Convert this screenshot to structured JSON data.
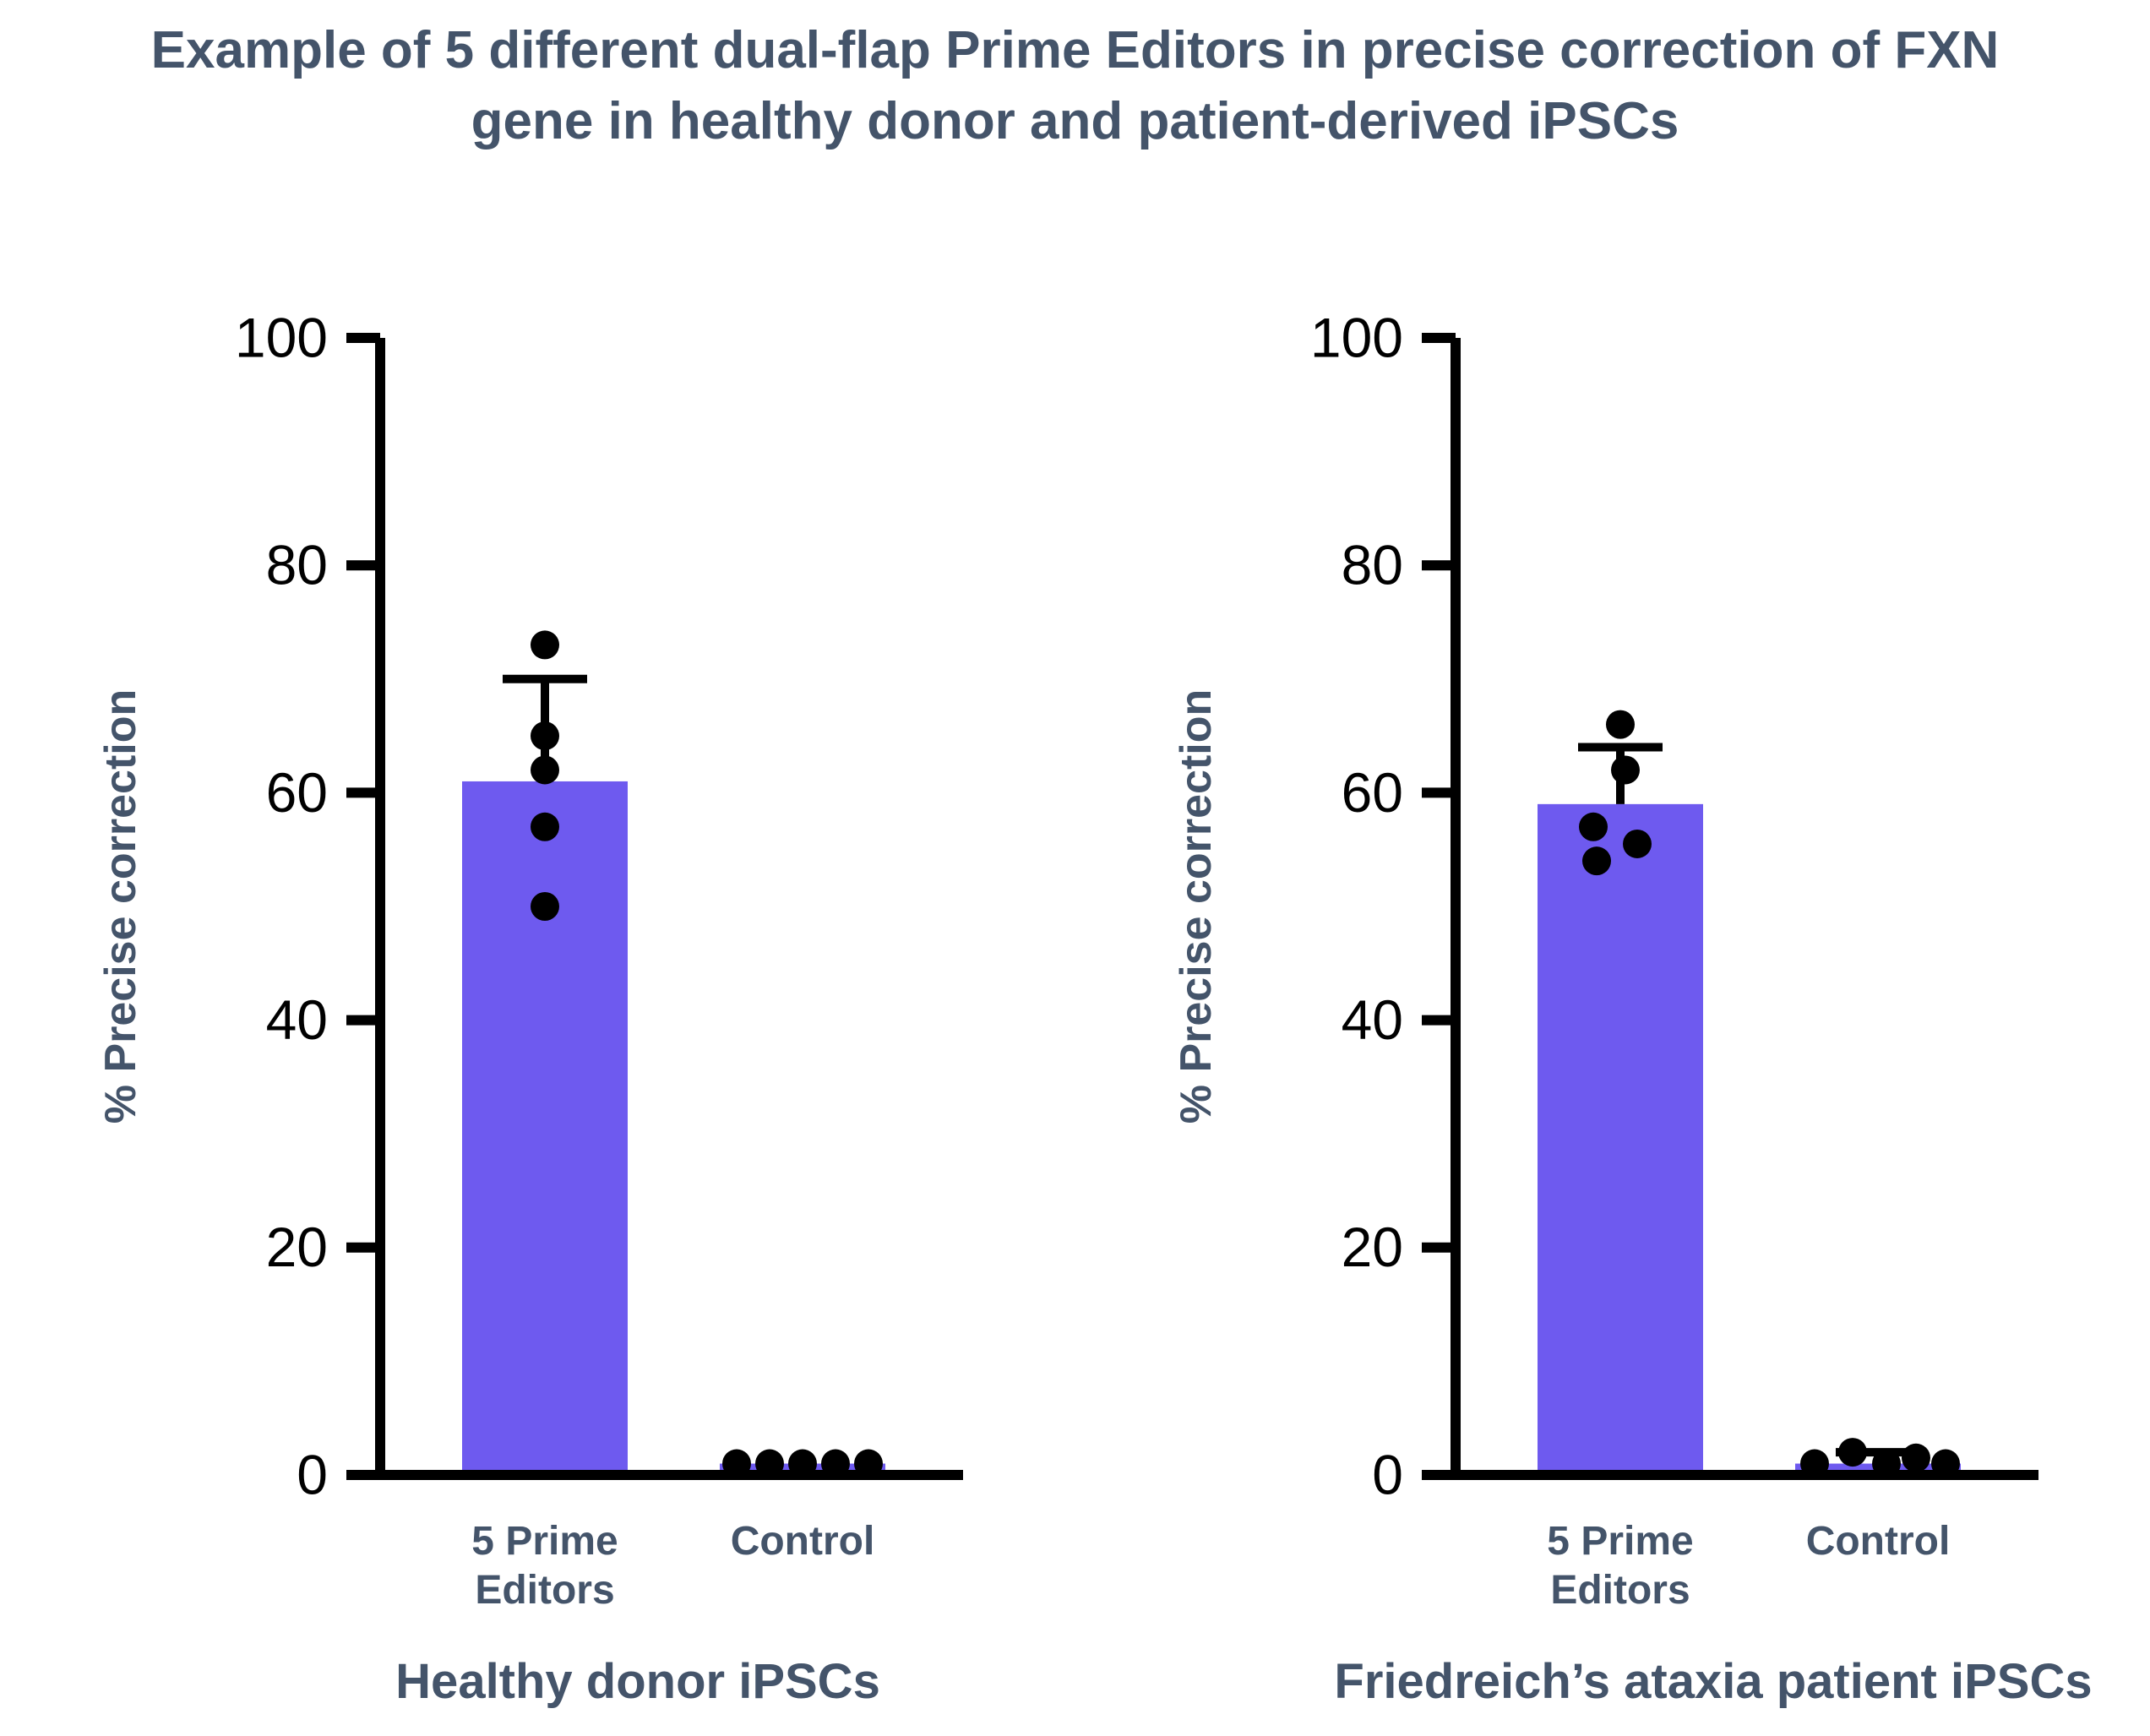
{
  "page": {
    "title_lines": [
      "Example of 5 different dual-flap Prime Editors in precise correction of FXN",
      "gene in healthy donor and patient-derived iPSCs"
    ],
    "title_color": "#44546A",
    "background": "#ffffff"
  },
  "chart_data": [
    {
      "type": "bar",
      "title": "Healthy donor iPSCs",
      "ylabel": "% Precise correction",
      "ylim": [
        0,
        100
      ],
      "yticks": [
        0,
        20,
        40,
        60,
        80,
        100
      ],
      "grid": false,
      "bar_color": "#6e5aef",
      "point_color": "#000000",
      "axis_color": "#000000",
      "label_color": "#44546A",
      "categories": [
        "5 Prime Editors",
        "Control"
      ],
      "groups": [
        {
          "label_lines": [
            "5 Prime",
            "Editors"
          ],
          "mean": 61,
          "error_top": 70,
          "points": [
            {
              "v": 73,
              "dx": 0
            },
            {
              "v": 65,
              "dx": 0
            },
            {
              "v": 62,
              "dx": 0
            },
            {
              "v": 57,
              "dx": 0
            },
            {
              "v": 50,
              "dx": 0
            }
          ]
        },
        {
          "label_lines": [
            "Control"
          ],
          "mean": 1,
          "error_top": 1,
          "points": [
            {
              "v": 1,
              "dx": -78
            },
            {
              "v": 1,
              "dx": -39
            },
            {
              "v": 1,
              "dx": 0
            },
            {
              "v": 1,
              "dx": 39
            },
            {
              "v": 1,
              "dx": 78
            }
          ]
        }
      ]
    },
    {
      "type": "bar",
      "title": "Friedreich’s ataxia patient iPSCs",
      "ylabel": "% Precise correction",
      "ylim": [
        0,
        100
      ],
      "yticks": [
        0,
        20,
        40,
        60,
        80,
        100
      ],
      "grid": false,
      "bar_color": "#6e5aef",
      "point_color": "#000000",
      "axis_color": "#000000",
      "label_color": "#44546A",
      "categories": [
        "5 Prime Editors",
        "Control"
      ],
      "groups": [
        {
          "label_lines": [
            "5 Prime",
            "Editors"
          ],
          "mean": 59,
          "error_top": 64,
          "points": [
            {
              "v": 66,
              "dx": 0
            },
            {
              "v": 62,
              "dx": 6
            },
            {
              "v": 57,
              "dx": -32
            },
            {
              "v": 54,
              "dx": -28
            },
            {
              "v": 55.5,
              "dx": 20
            }
          ]
        },
        {
          "label_lines": [
            "Control"
          ],
          "mean": 1,
          "error_top": 2,
          "points": [
            {
              "v": 1,
              "dx": -75
            },
            {
              "v": 2,
              "dx": -30
            },
            {
              "v": 1,
              "dx": 10
            },
            {
              "v": 1.5,
              "dx": 45
            },
            {
              "v": 1,
              "dx": 80
            }
          ]
        }
      ]
    }
  ]
}
